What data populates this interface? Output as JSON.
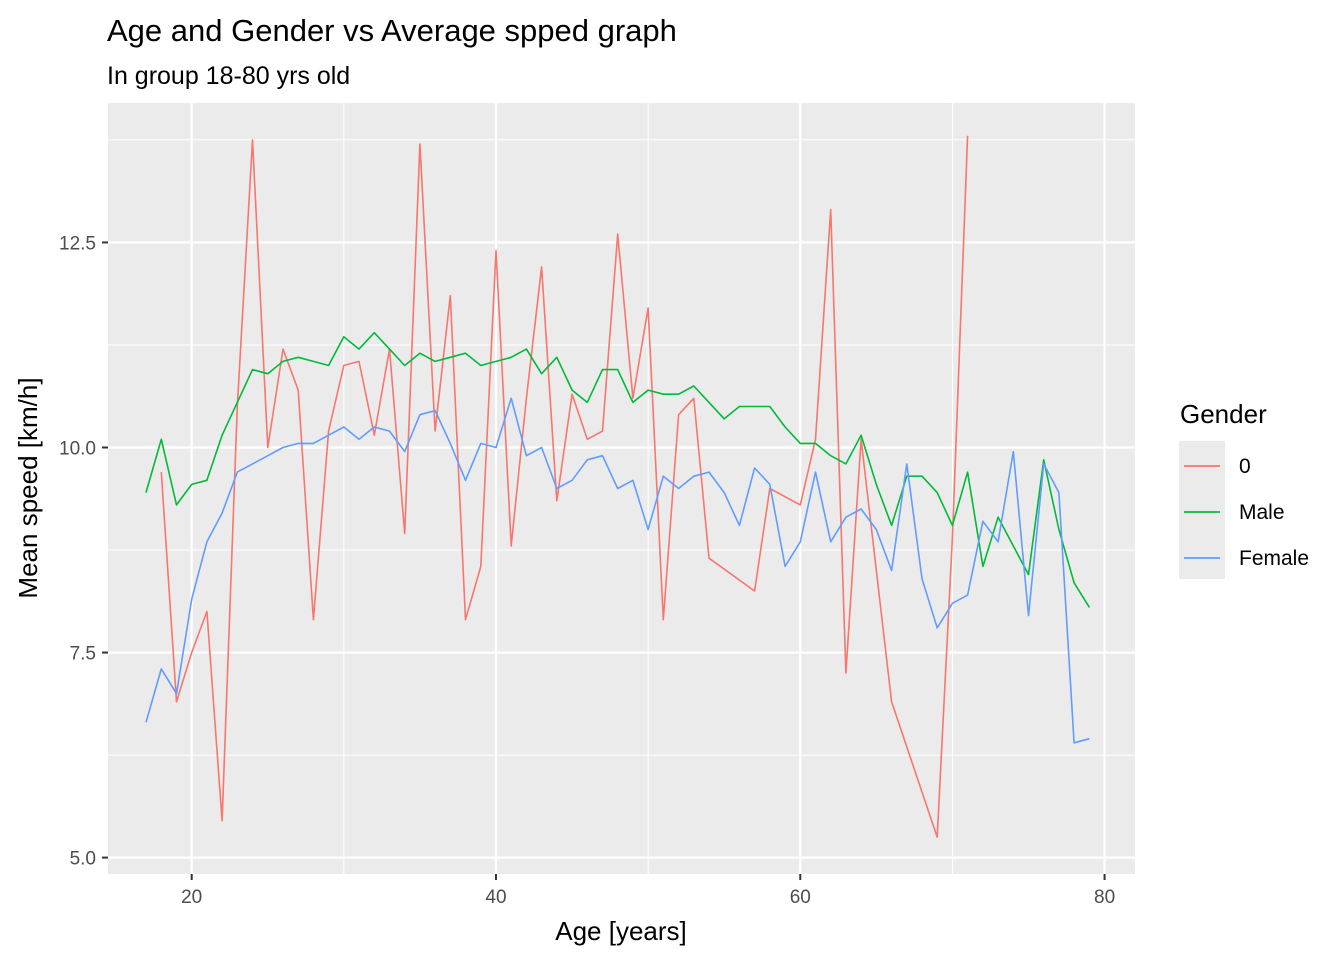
{
  "chart_data": {
    "type": "line",
    "title": "Age and Gender vs Average spped graph",
    "subtitle": "In group 18-80 yrs old",
    "xlabel": "Age [years]",
    "ylabel": "Mean speed [km/h]",
    "xlim": [
      14.5,
      82
    ],
    "ylim": [
      4.8,
      14.2
    ],
    "x_ticks": [
      20,
      40,
      60,
      80
    ],
    "x_tick_labels": [
      "20",
      "40",
      "60",
      "80"
    ],
    "y_ticks": [
      5.0,
      7.5,
      10.0,
      12.5
    ],
    "y_tick_labels": [
      "5.0",
      "7.5",
      "10.0",
      "12.5"
    ],
    "grid": true,
    "legend_title": "Gender",
    "legend_position": "right",
    "series": [
      {
        "name": "0",
        "color": "#F8766D",
        "x": [
          18,
          19,
          20,
          21,
          22,
          23,
          24,
          25,
          26,
          27,
          28,
          29,
          30,
          31,
          32,
          33,
          34,
          35,
          36,
          37,
          38,
          39,
          40,
          41,
          42,
          43,
          44,
          45,
          46,
          47,
          48,
          49,
          50,
          51,
          52,
          53,
          54,
          57,
          58,
          60,
          61,
          62,
          63,
          64,
          66,
          69,
          70,
          71
        ],
        "y": [
          9.7,
          6.9,
          7.5,
          8.0,
          5.45,
          10.5,
          13.75,
          10.0,
          11.2,
          10.7,
          7.9,
          10.2,
          11.0,
          11.05,
          10.15,
          11.2,
          8.95,
          13.7,
          10.2,
          11.85,
          7.9,
          8.55,
          12.4,
          8.8,
          10.6,
          12.2,
          9.35,
          10.65,
          10.1,
          10.2,
          12.6,
          10.6,
          11.7,
          7.9,
          10.4,
          10.6,
          8.65,
          8.25,
          9.5,
          9.3,
          10.1,
          12.9,
          7.25,
          10.1,
          6.9,
          5.25,
          8.9,
          13.8
        ]
      },
      {
        "name": "Male",
        "color": "#00BA38",
        "x": [
          17,
          18,
          19,
          20,
          21,
          22,
          23,
          24,
          25,
          26,
          27,
          28,
          29,
          30,
          31,
          32,
          33,
          34,
          35,
          36,
          37,
          38,
          39,
          40,
          41,
          42,
          43,
          44,
          45,
          46,
          47,
          48,
          49,
          50,
          51,
          52,
          53,
          54,
          55,
          56,
          57,
          58,
          59,
          60,
          61,
          62,
          63,
          64,
          65,
          66,
          67,
          68,
          69,
          70,
          71,
          72,
          73,
          74,
          75,
          76,
          77,
          78,
          79
        ],
        "y": [
          9.45,
          10.1,
          9.3,
          9.55,
          9.6,
          10.15,
          10.55,
          10.95,
          10.9,
          11.05,
          11.1,
          11.05,
          11.0,
          11.35,
          11.2,
          11.4,
          11.2,
          11.0,
          11.15,
          11.05,
          11.1,
          11.15,
          11.0,
          11.05,
          11.1,
          11.2,
          10.9,
          11.1,
          10.7,
          10.55,
          10.95,
          10.95,
          10.55,
          10.7,
          10.65,
          10.65,
          10.75,
          10.55,
          10.35,
          10.5,
          10.5,
          10.5,
          10.25,
          10.05,
          10.05,
          9.9,
          9.8,
          10.15,
          9.55,
          9.05,
          9.65,
          9.65,
          9.45,
          9.05,
          9.7,
          8.55,
          9.15,
          8.8,
          8.45,
          9.85,
          9.0,
          8.35,
          8.05
        ]
      },
      {
        "name": "Female",
        "color": "#619CFF",
        "x": [
          17,
          18,
          19,
          20,
          21,
          22,
          23,
          24,
          25,
          26,
          27,
          28,
          29,
          30,
          31,
          32,
          33,
          34,
          35,
          36,
          37,
          38,
          39,
          40,
          41,
          42,
          43,
          44,
          45,
          46,
          47,
          48,
          49,
          50,
          51,
          52,
          53,
          54,
          55,
          56,
          57,
          58,
          59,
          60,
          61,
          62,
          63,
          64,
          65,
          66,
          67,
          68,
          69,
          70,
          71,
          72,
          73,
          74,
          75,
          76,
          77,
          78,
          79
        ],
        "y": [
          6.65,
          7.3,
          7.0,
          8.15,
          8.85,
          9.2,
          9.7,
          9.8,
          9.9,
          10.0,
          10.05,
          10.05,
          10.15,
          10.25,
          10.1,
          10.25,
          10.2,
          9.95,
          10.4,
          10.45,
          10.05,
          9.6,
          10.05,
          10.0,
          10.6,
          9.9,
          10.0,
          9.5,
          9.6,
          9.85,
          9.9,
          9.5,
          9.6,
          9.0,
          9.65,
          9.5,
          9.65,
          9.7,
          9.45,
          9.05,
          9.75,
          9.55,
          8.55,
          8.85,
          9.7,
          8.85,
          9.15,
          9.25,
          9.0,
          8.5,
          9.8,
          8.4,
          7.8,
          8.1,
          8.2,
          9.1,
          8.85,
          9.95,
          7.95,
          9.8,
          9.45,
          6.4,
          6.45
        ]
      }
    ]
  }
}
